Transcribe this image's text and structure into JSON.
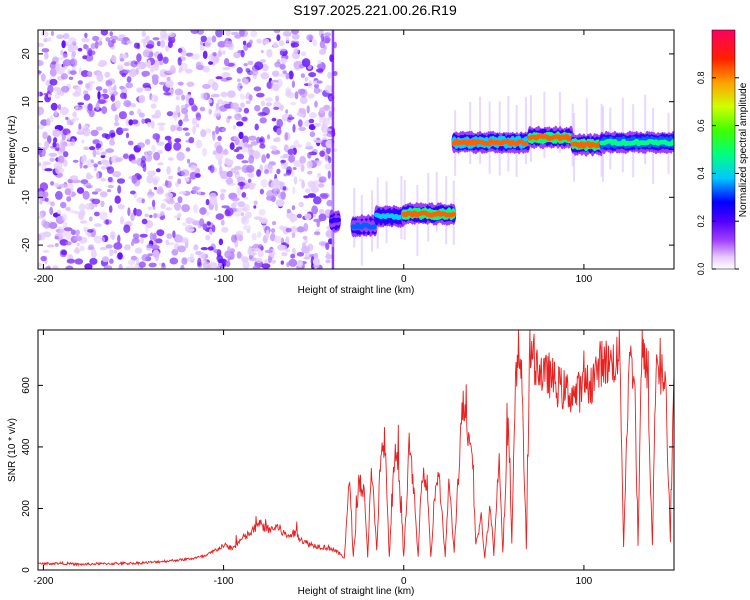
{
  "title": "S197.2025.221.00.26.R19",
  "chart_data": [
    {
      "type": "heatmap",
      "title": "S197.2025.221.00.26.R19",
      "xlabel": "Height of straight line (km)",
      "ylabel": "Frequency (Hz)",
      "xlim": [
        -203,
        150
      ],
      "ylim": [
        -25,
        25
      ],
      "xticks": [
        -200,
        -100,
        0,
        100
      ],
      "yticks": [
        -20,
        -10,
        0,
        10,
        20
      ],
      "colorbar": {
        "label": "Normalized spectral amplitude",
        "range": [
          0,
          1
        ],
        "ticks": [
          0.0,
          0.2,
          0.4,
          0.6,
          0.8
        ],
        "colors": [
          "#ffffff",
          "#e8c8ff",
          "#a040ff",
          "#6000ff",
          "#0000ff",
          "#00d0ff",
          "#00ff60",
          "#d0ff00",
          "#ff8000",
          "#ff0040"
        ]
      },
      "noise_region": {
        "x_range": [
          -203,
          -38
        ],
        "freq_range": [
          -25,
          25
        ]
      },
      "signal_segments": [
        {
          "x_start": -40,
          "x_end": -36,
          "freq": -15,
          "peak_amplitude": 0.3
        },
        {
          "x_start": -28,
          "x_end": -15,
          "freq": -16,
          "peak_amplitude": 0.4
        },
        {
          "x_start": -15,
          "x_end": 0,
          "freq": -14,
          "peak_amplitude": 0.45
        },
        {
          "x_start": 0,
          "x_end": 28,
          "freq": -13.5,
          "peak_amplitude": 0.95
        },
        {
          "x_start": 28,
          "x_end": 70,
          "freq": 1.5,
          "peak_amplitude": 0.85
        },
        {
          "x_start": 70,
          "x_end": 94,
          "freq": 2.5,
          "peak_amplitude": 0.95
        },
        {
          "x_start": 94,
          "x_end": 110,
          "freq": 1,
          "peak_amplitude": 0.95
        },
        {
          "x_start": 110,
          "x_end": 150,
          "freq": 1.5,
          "peak_amplitude": 0.6
        }
      ]
    },
    {
      "type": "line",
      "xlabel": "Height of straight line (km)",
      "ylabel": "SNR (10 * v/v)",
      "xlim": [
        -203,
        150
      ],
      "ylim": [
        0,
        780
      ],
      "xticks": [
        -200,
        -100,
        0,
        100
      ],
      "yticks": [
        0,
        200,
        400,
        600
      ],
      "color": "#e82020",
      "series": [
        {
          "name": "SNR",
          "x": [
            -203,
            -190,
            -180,
            -170,
            -160,
            -150,
            -140,
            -130,
            -120,
            -110,
            -100,
            -95,
            -90,
            -85,
            -80,
            -75,
            -70,
            -65,
            -60,
            -55,
            -50,
            -45,
            -40,
            -35,
            -33,
            -30,
            -28,
            -25,
            -22,
            -20,
            -18,
            -15,
            -12,
            -10,
            -8,
            -5,
            -3,
            0,
            3,
            5,
            8,
            10,
            13,
            15,
            18,
            20,
            23,
            25,
            28,
            30,
            33,
            35,
            38,
            40,
            43,
            45,
            48,
            50,
            53,
            55,
            58,
            60,
            62,
            65,
            68,
            70,
            72,
            75,
            78,
            80,
            85,
            90,
            95,
            100,
            105,
            110,
            115,
            120,
            122,
            125,
            128,
            130,
            132,
            135,
            138,
            140,
            142,
            145,
            148,
            150
          ],
          "y": [
            20,
            22,
            18,
            20,
            21,
            22,
            25,
            30,
            35,
            45,
            80,
            70,
            100,
            120,
            150,
            130,
            140,
            110,
            120,
            90,
            80,
            75,
            70,
            50,
            40,
            300,
            40,
            280,
            250,
            40,
            350,
            60,
            420,
            350,
            40,
            380,
            330,
            40,
            400,
            300,
            40,
            330,
            280,
            40,
            300,
            280,
            40,
            290,
            60,
            280,
            550,
            420,
            380,
            80,
            170,
            40,
            220,
            50,
            380,
            60,
            480,
            80,
            600,
            700,
            70,
            720,
            690,
            660,
            620,
            640,
            600,
            580,
            570,
            590,
            620,
            680,
            670,
            700,
            80,
            680,
            650,
            80,
            690,
            660,
            80,
            680,
            640,
            620,
            90,
            640
          ]
        }
      ]
    }
  ]
}
